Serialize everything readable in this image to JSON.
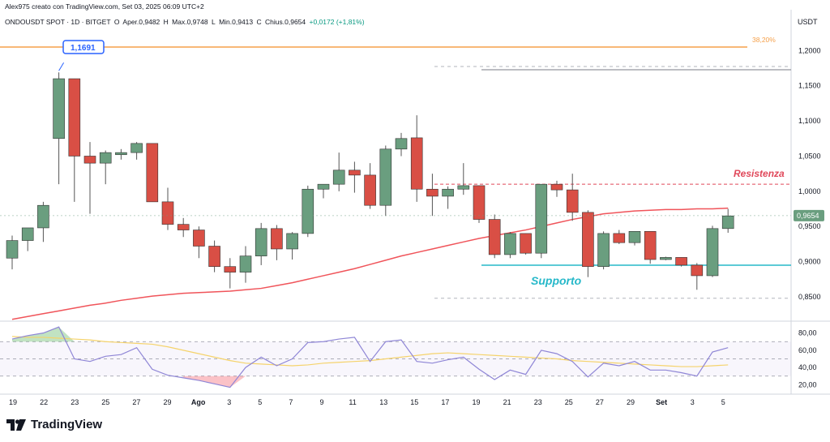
{
  "header": {
    "author_line": "Alex975 creato con TradingView.com, Set 03, 2025 06:09 UTC+2",
    "symbol": "ONDOUSDT SPOT · 1D · BITGET",
    "open_label": "O",
    "open": "Aper.0,9482",
    "high_label": "H",
    "high": "Max.0,9748",
    "low_label": "L",
    "low": "Min.0,9413",
    "close_label": "C",
    "close": "Chius.0,9654",
    "change": "+0,0172 (+1,81%)"
  },
  "axis": {
    "currency": "USDT",
    "price_ticks": [
      "1,2000",
      "1,1500",
      "1,1000",
      "1,0500",
      "1,0000",
      "0,9500",
      "0,9000",
      "0,8500"
    ],
    "rsi_ticks": [
      "80,00",
      "60,00",
      "40,00",
      "20,00"
    ],
    "time_ticks": [
      "19",
      "22",
      "23",
      "25",
      "27",
      "29",
      "Ago",
      "3",
      "5",
      "7",
      "9",
      "11",
      "13",
      "15",
      "17",
      "19",
      "21",
      "23",
      "25",
      "27",
      "29",
      "Set",
      "3",
      "5"
    ],
    "current_price": "0,9654"
  },
  "annotations": {
    "fib_label": "38,20%",
    "high_label": "1,1691",
    "resistance": "Resistenza",
    "support": "Supporto"
  },
  "colors": {
    "up": "#6a9e7f",
    "down": "#d94f45",
    "ma": "#f0545a",
    "fib": "#f5a04a",
    "support": "#26b8c9",
    "resistance": "#e0485a",
    "rsi": "#8f86d6",
    "rsi_ma": "#f5d36b",
    "label_blue": "#2962ff"
  },
  "chart_data": {
    "type": "candlestick",
    "price_range": [
      0.82,
      1.22
    ],
    "levels": {
      "fib_38_2": 1.205,
      "resistance": 1.01,
      "support": 0.895,
      "dashed_upper": 1.175,
      "dashed_lower": 0.848
    },
    "candles": [
      {
        "o": 0.905,
        "h": 0.937,
        "l": 0.889,
        "c": 0.93
      },
      {
        "o": 0.93,
        "h": 0.948,
        "l": 0.915,
        "c": 0.948
      },
      {
        "o": 0.948,
        "h": 0.985,
        "l": 0.928,
        "c": 0.98
      },
      {
        "o": 1.075,
        "h": 1.169,
        "l": 1.01,
        "c": 1.16
      },
      {
        "o": 1.16,
        "h": 1.16,
        "l": 0.985,
        "c": 1.05
      },
      {
        "o": 1.05,
        "h": 1.07,
        "l": 0.968,
        "c": 1.04
      },
      {
        "o": 1.04,
        "h": 1.058,
        "l": 1.01,
        "c": 1.055
      },
      {
        "o": 1.052,
        "h": 1.06,
        "l": 1.045,
        "c": 1.055
      },
      {
        "o": 1.055,
        "h": 1.07,
        "l": 1.045,
        "c": 1.068
      },
      {
        "o": 1.068,
        "h": 1.068,
        "l": 0.985,
        "c": 0.985
      },
      {
        "o": 0.985,
        "h": 1.005,
        "l": 0.945,
        "c": 0.953
      },
      {
        "o": 0.953,
        "h": 0.962,
        "l": 0.935,
        "c": 0.945
      },
      {
        "o": 0.945,
        "h": 0.95,
        "l": 0.905,
        "c": 0.922
      },
      {
        "o": 0.922,
        "h": 0.93,
        "l": 0.885,
        "c": 0.893
      },
      {
        "o": 0.893,
        "h": 0.905,
        "l": 0.862,
        "c": 0.885
      },
      {
        "o": 0.885,
        "h": 0.922,
        "l": 0.87,
        "c": 0.908
      },
      {
        "o": 0.908,
        "h": 0.955,
        "l": 0.895,
        "c": 0.947
      },
      {
        "o": 0.947,
        "h": 0.952,
        "l": 0.902,
        "c": 0.918
      },
      {
        "o": 0.918,
        "h": 0.942,
        "l": 0.903,
        "c": 0.94
      },
      {
        "o": 0.94,
        "h": 1.008,
        "l": 0.935,
        "c": 1.003
      },
      {
        "o": 1.003,
        "h": 1.01,
        "l": 0.99,
        "c": 1.01
      },
      {
        "o": 1.01,
        "h": 1.055,
        "l": 1.0,
        "c": 1.03
      },
      {
        "o": 1.03,
        "h": 1.042,
        "l": 0.998,
        "c": 1.023
      },
      {
        "o": 1.023,
        "h": 1.04,
        "l": 0.975,
        "c": 0.98
      },
      {
        "o": 0.98,
        "h": 1.065,
        "l": 0.965,
        "c": 1.06
      },
      {
        "o": 1.06,
        "h": 1.083,
        "l": 1.05,
        "c": 1.075
      },
      {
        "o": 1.076,
        "h": 1.108,
        "l": 0.985,
        "c": 1.003
      },
      {
        "o": 1.003,
        "h": 1.025,
        "l": 0.965,
        "c": 0.993
      },
      {
        "o": 0.993,
        "h": 1.007,
        "l": 0.975,
        "c": 1.003
      },
      {
        "o": 1.003,
        "h": 1.04,
        "l": 0.995,
        "c": 1.008
      },
      {
        "o": 1.008,
        "h": 1.008,
        "l": 0.955,
        "c": 0.96
      },
      {
        "o": 0.96,
        "h": 0.967,
        "l": 0.905,
        "c": 0.91
      },
      {
        "o": 0.91,
        "h": 0.942,
        "l": 0.905,
        "c": 0.94
      },
      {
        "o": 0.94,
        "h": 0.94,
        "l": 0.91,
        "c": 0.912
      },
      {
        "o": 0.912,
        "h": 1.01,
        "l": 0.905,
        "c": 1.01
      },
      {
        "o": 1.01,
        "h": 1.015,
        "l": 0.992,
        "c": 1.002
      },
      {
        "o": 1.002,
        "h": 1.025,
        "l": 0.958,
        "c": 0.97
      },
      {
        "o": 0.97,
        "h": 0.973,
        "l": 0.878,
        "c": 0.893
      },
      {
        "o": 0.893,
        "h": 0.943,
        "l": 0.889,
        "c": 0.94
      },
      {
        "o": 0.94,
        "h": 0.945,
        "l": 0.925,
        "c": 0.927
      },
      {
        "o": 0.927,
        "h": 0.943,
        "l": 0.923,
        "c": 0.943
      },
      {
        "o": 0.943,
        "h": 0.943,
        "l": 0.897,
        "c": 0.903
      },
      {
        "o": 0.903,
        "h": 0.907,
        "l": 0.902,
        "c": 0.906
      },
      {
        "o": 0.906,
        "h": 0.906,
        "l": 0.893,
        "c": 0.895
      },
      {
        "o": 0.895,
        "h": 0.898,
        "l": 0.86,
        "c": 0.88
      },
      {
        "o": 0.88,
        "h": 0.951,
        "l": 0.878,
        "c": 0.947
      },
      {
        "o": 0.947,
        "h": 0.975,
        "l": 0.941,
        "c": 0.965
      }
    ],
    "ma_series": [
      0.818,
      0.822,
      0.826,
      0.83,
      0.834,
      0.838,
      0.841,
      0.845,
      0.848,
      0.851,
      0.853,
      0.855,
      0.856,
      0.857,
      0.858,
      0.86,
      0.862,
      0.866,
      0.87,
      0.875,
      0.88,
      0.885,
      0.89,
      0.896,
      0.902,
      0.908,
      0.913,
      0.918,
      0.923,
      0.928,
      0.933,
      0.937,
      0.941,
      0.945,
      0.95,
      0.955,
      0.96,
      0.964,
      0.968,
      0.97,
      0.972,
      0.973,
      0.974,
      0.974,
      0.975,
      0.975,
      0.976
    ],
    "rsi_range": [
      10,
      90
    ],
    "rsi_levels": {
      "upper": 70,
      "middle": 50,
      "lower": 30
    },
    "rsi": [
      73,
      77,
      80,
      87,
      50,
      47,
      53,
      55,
      63,
      38,
      31,
      28,
      25,
      21,
      17,
      40,
      52,
      42,
      50,
      69,
      70,
      73,
      75,
      47,
      70,
      72,
      47,
      45,
      49,
      52,
      38,
      26,
      37,
      32,
      60,
      56,
      47,
      29,
      45,
      42,
      47,
      37,
      37,
      34,
      30,
      58,
      63
    ],
    "rsi_ma": [
      76,
      75,
      75,
      74,
      73,
      72,
      70,
      69,
      68,
      67,
      64,
      60,
      56,
      52,
      48,
      45,
      44,
      43,
      42,
      43,
      45,
      46,
      47,
      48,
      50,
      52,
      54,
      56,
      57,
      56,
      55,
      54,
      53,
      52,
      51,
      50,
      48,
      47,
      46,
      45,
      44,
      43,
      42,
      41,
      41,
      42,
      43
    ]
  }
}
